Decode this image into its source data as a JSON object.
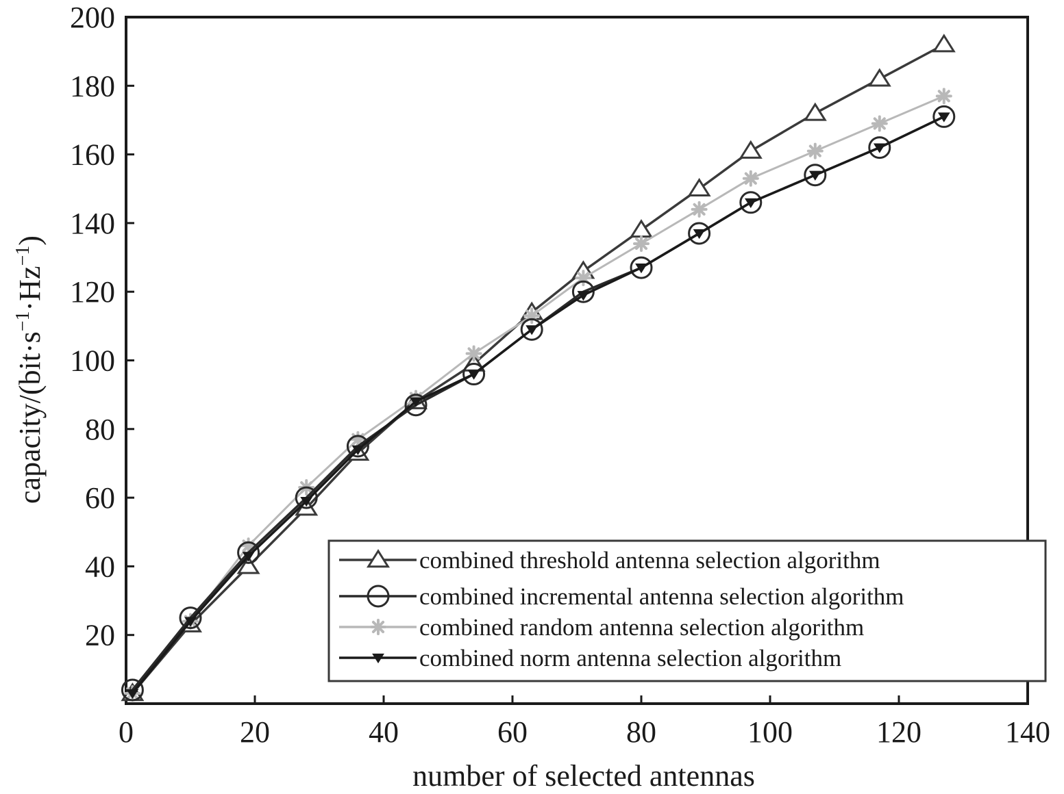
{
  "chart_data": {
    "type": "line",
    "title": "",
    "xlabel": "number of selected antennas",
    "ylabel": "capacity/(bit·s",
    "ylabel_sup1": "−1",
    "ylabel_mid": "·Hz",
    "ylabel_sup2": "−1",
    "ylabel_end": ")",
    "xlim": [
      0,
      140
    ],
    "ylim": [
      0,
      200
    ],
    "x_ticks": [
      "0",
      "20",
      "40",
      "60",
      "80",
      "100",
      "120",
      "140"
    ],
    "y_ticks": [
      "20",
      "40",
      "60",
      "80",
      "100",
      "120",
      "140",
      "160",
      "180",
      "200"
    ],
    "grid": false,
    "legend_position": "bottom-right",
    "x": [
      1,
      10,
      19,
      28,
      36,
      45,
      54,
      63,
      71,
      80,
      89,
      97,
      107,
      117,
      127
    ],
    "series": [
      {
        "name": "combined threshold antenna selection algorithm",
        "marker": "triangle-up",
        "color": "#3a3a3a",
        "values": [
          3,
          23,
          40,
          57,
          73,
          88,
          99,
          114,
          126,
          138,
          150,
          161,
          172,
          182,
          192
        ]
      },
      {
        "name": "combined incremental antenna selection algorithm",
        "marker": "circle",
        "color": "#2a2a2a",
        "values": [
          4,
          25,
          44,
          60,
          75,
          87,
          96,
          109,
          120,
          127,
          137,
          146,
          154,
          162,
          171
        ]
      },
      {
        "name": "combined random antenna selection algorithm",
        "marker": "star",
        "color": "#b8b8b8",
        "values": [
          3,
          24,
          46,
          63,
          77,
          89,
          102,
          113,
          124,
          134,
          144,
          153,
          161,
          169,
          177
        ]
      },
      {
        "name": "combined norm antenna selection algorithm",
        "marker": "triangle-down",
        "color": "#1a1a1a",
        "values": [
          3,
          24,
          43,
          59,
          74,
          88,
          96,
          109,
          119,
          127,
          137,
          146,
          154,
          162,
          171
        ]
      }
    ]
  }
}
